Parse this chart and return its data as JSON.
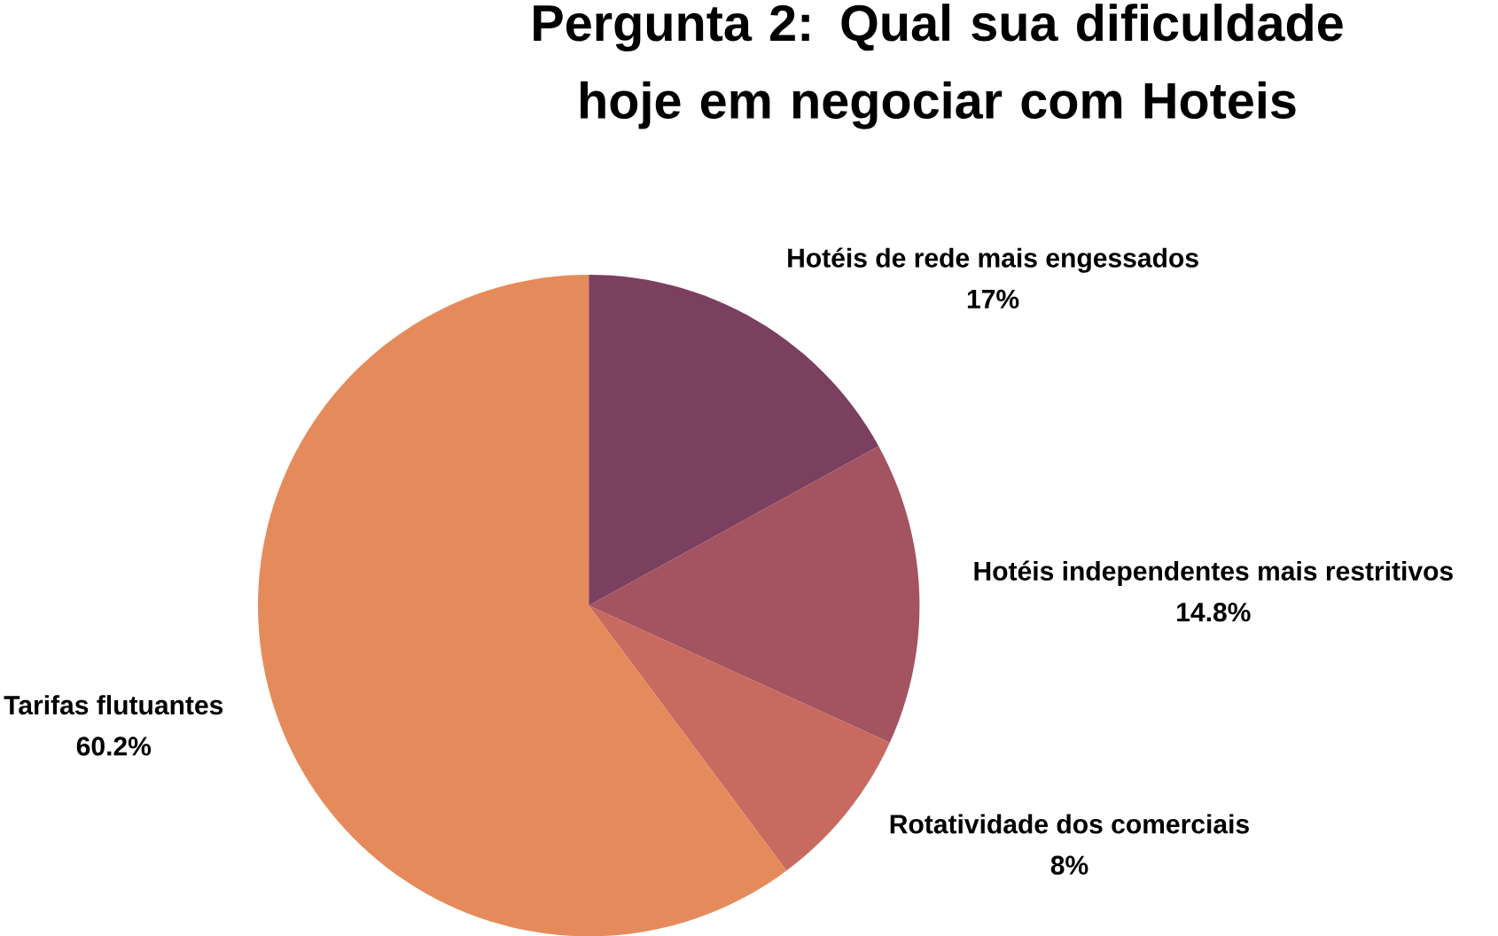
{
  "chart_data": {
    "type": "pie",
    "title": "Pergunta 2: Qual sua dificuldade hoje em negociar com Hoteis",
    "categories": [
      "Hotéis de rede mais engessados",
      "Hotéis independentes mais restritivos",
      "Rotatividade dos comerciais",
      "Tarifas flutuantes"
    ],
    "values": [
      17,
      14.8,
      8,
      60.2
    ],
    "value_labels": [
      "17%",
      "14.8%",
      "8%",
      "60.2%"
    ],
    "colors": [
      "#7b3f5f",
      "#a35460",
      "#c86a5f",
      "#e58b5b"
    ],
    "legend": false
  }
}
